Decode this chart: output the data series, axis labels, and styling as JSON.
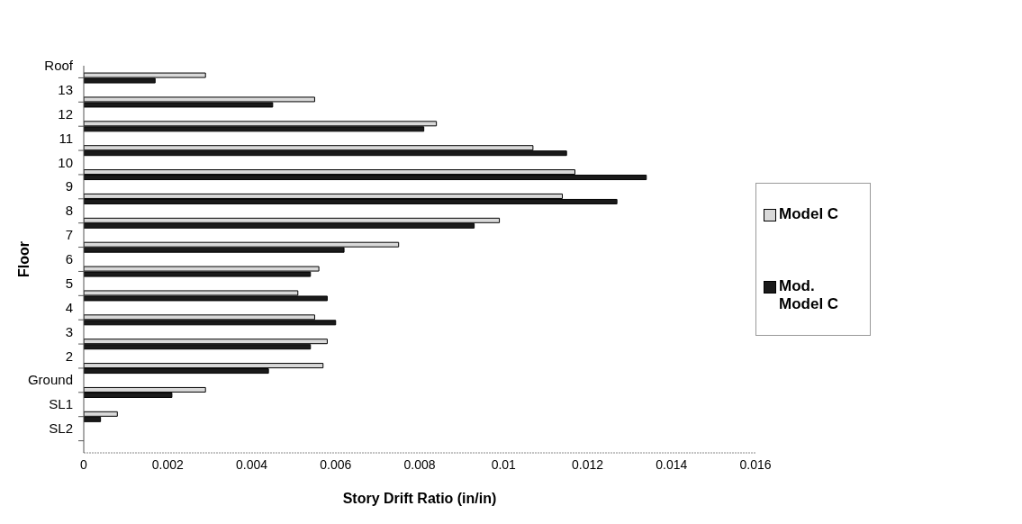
{
  "chart_data": {
    "type": "bar",
    "orientation": "horizontal",
    "xlabel": "Story Drift Ratio (in/in)",
    "ylabel": "Floor",
    "categories": [
      "Roof",
      "13",
      "12",
      "11",
      "10",
      "9",
      "8",
      "7",
      "6",
      "5",
      "4",
      "3",
      "2",
      "Ground",
      "SL1",
      "SL2"
    ],
    "series": [
      {
        "name": "Model C",
        "color": "#d9d9d9",
        "values": [
          0.0029,
          0.0055,
          0.0084,
          0.0107,
          0.0117,
          0.0114,
          0.0099,
          0.0075,
          0.0056,
          0.0051,
          0.0055,
          0.0058,
          0.0057,
          0.0029,
          0.0008,
          null
        ]
      },
      {
        "name": "Mod. Model C",
        "color": "#1a1a1a",
        "values": [
          0.0017,
          0.0045,
          0.0081,
          0.0115,
          0.0134,
          0.0127,
          0.0093,
          0.0062,
          0.0054,
          0.0058,
          0.006,
          0.0054,
          0.0044,
          0.0021,
          0.0004,
          null
        ]
      }
    ],
    "xlim": [
      0,
      0.016
    ],
    "xticks": [
      0,
      0.002,
      0.004,
      0.006,
      0.008,
      0.01,
      0.012,
      0.014,
      0.016
    ],
    "grid": false,
    "legend": "right"
  }
}
